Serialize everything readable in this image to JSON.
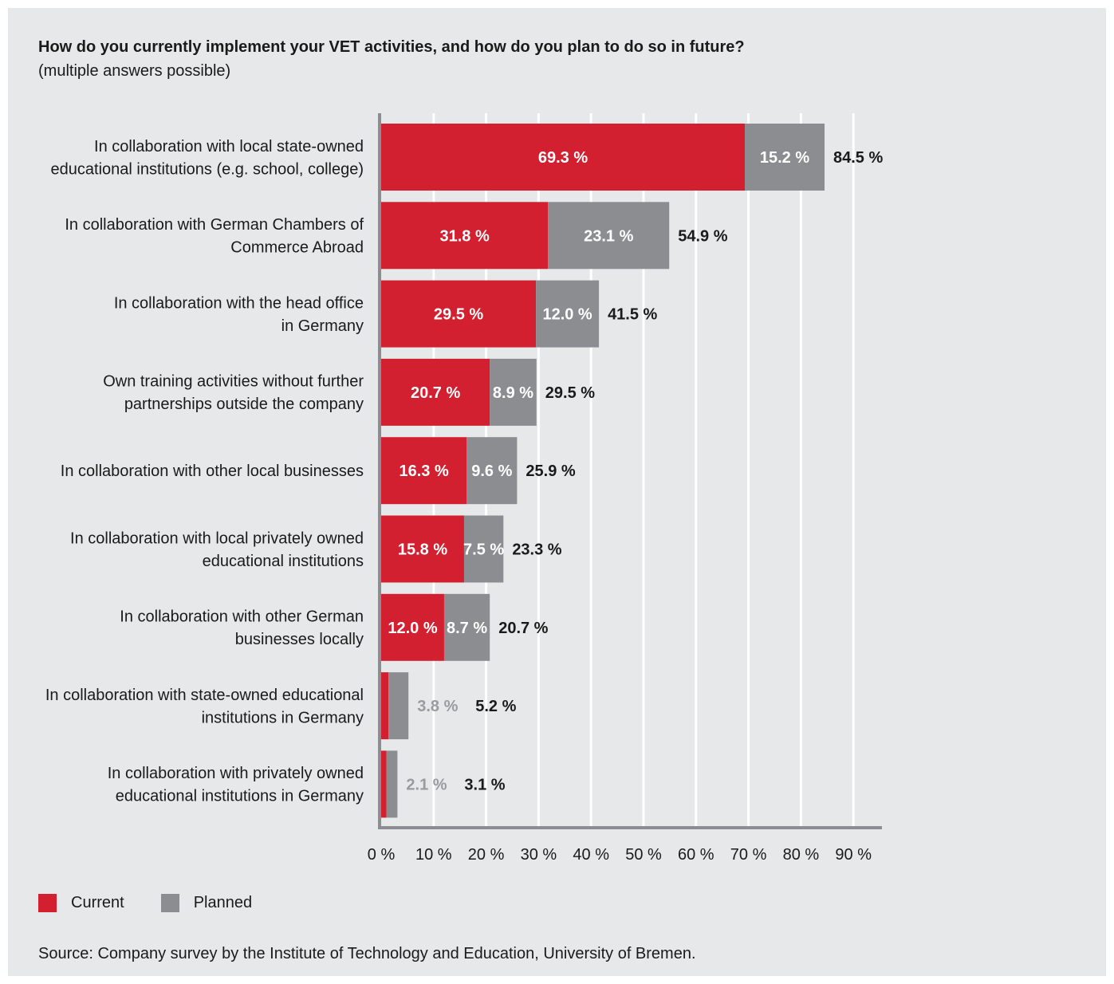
{
  "title": "How do you currently implement your VET activities, and how do you plan to do so in future?",
  "subtitle": "(multiple answers possible)",
  "source": "Source: Company survey by the Institute of Technology and Education, University of Bremen.",
  "colors": {
    "current": "#d22030",
    "planned": "#8c8d90",
    "axis": "#8c8d90",
    "grid": "#ffffff",
    "background": "#e7e8e9"
  },
  "legend": [
    {
      "label": "Current",
      "color": "#d22030"
    },
    {
      "label": "Planned",
      "color": "#8c8d90"
    }
  ],
  "chart_data": {
    "type": "bar",
    "orientation": "horizontal",
    "stacked": true,
    "title": "How do you currently implement your VET activities, and how do you plan to do so in future?",
    "subtitle": "(multiple answers possible)",
    "xlim": [
      0,
      95
    ],
    "xticks": [
      "0 %",
      "10 %",
      "20 %",
      "30 %",
      "40 %",
      "50 %",
      "60 %",
      "70 %",
      "80 %",
      "90 %"
    ],
    "grid": true,
    "legend_position": "bottom-left",
    "categories": [
      [
        "In collaboration with local state-owned",
        "educational institutions (e.g. school, college)"
      ],
      [
        "In collaboration with German Chambers of",
        "Commerce Abroad"
      ],
      [
        "In collaboration with the head office",
        "in Germany"
      ],
      [
        "Own training activities without further",
        "partnerships outside the company"
      ],
      [
        "In collaboration with other local businesses"
      ],
      [
        "In collaboration with local privately owned",
        "educational institutions"
      ],
      [
        "In collaboration with other German",
        "businesses locally"
      ],
      [
        "In collaboration with state-owned educational",
        "institutions in Germany"
      ],
      [
        "In collaboration with privately owned",
        "educational institutions in Germany"
      ]
    ],
    "series": [
      {
        "name": "Current",
        "values": [
          69.3,
          31.8,
          29.5,
          20.7,
          16.3,
          15.8,
          12.0,
          1.4,
          1.0
        ],
        "labels": [
          "69.3 %",
          "31.8 %",
          "29.5 %",
          "20.7 %",
          "16.3 %",
          "15.8 %",
          "12.0 %",
          "",
          ""
        ]
      },
      {
        "name": "Planned",
        "values": [
          15.2,
          23.1,
          12.0,
          8.9,
          9.6,
          7.5,
          8.7,
          3.8,
          2.1
        ],
        "labels": [
          "15.2 %",
          "23.1 %",
          "12.0 %",
          "8.9 %",
          "9.6 %",
          "7.5 %",
          "8.7 %",
          "3.8 %",
          "2.1 %"
        ]
      }
    ],
    "totals": [
      "84.5 %",
      "54.9 %",
      "41.5 %",
      "29.5 %",
      "25.9 %",
      "23.3 %",
      "20.7 %",
      "5.2 %",
      "3.1 %"
    ]
  }
}
